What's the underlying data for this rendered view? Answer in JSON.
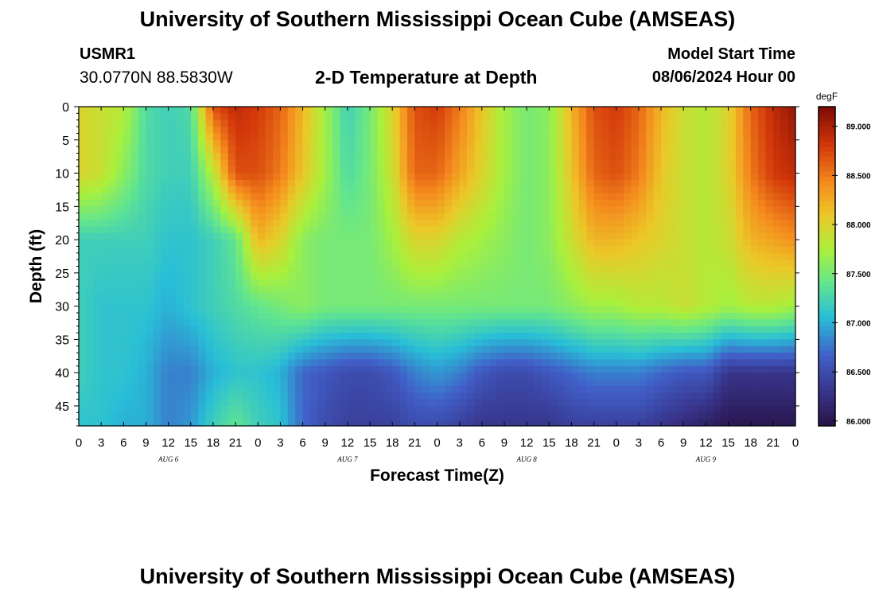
{
  "header": {
    "title": "University of Southern Mississippi Ocean Cube (AMSEAS)",
    "station_id": "USMR1",
    "coordinates": "30.0770N  88.5830W",
    "subtitle": "2-D Temperature at Depth",
    "model_start_label": "Model Start Time",
    "model_start_value": "08/06/2024 Hour 00"
  },
  "footer": {
    "title": "University of Southern Mississippi Ocean Cube (AMSEAS)"
  },
  "chart_data": {
    "type": "heatmap",
    "title": "2-D Temperature at Depth",
    "xlabel": "Forecast Time(Z)",
    "ylabel": "Depth (ft)",
    "x_range_hours": [
      0,
      96
    ],
    "x_tick_step_hours": 3,
    "x_tick_labels": [
      "0",
      "3",
      "6",
      "9",
      "12",
      "15",
      "18",
      "21",
      "0",
      "3",
      "6",
      "9",
      "12",
      "15",
      "18",
      "21",
      "0",
      "3",
      "6",
      "9",
      "12",
      "15",
      "18",
      "21",
      "0",
      "3",
      "6",
      "9",
      "12",
      "15",
      "18",
      "21",
      "0"
    ],
    "date_labels": [
      {
        "text": "AUG 6",
        "hour": 12
      },
      {
        "text": "AUG 7",
        "hour": 36
      },
      {
        "text": "AUG 8",
        "hour": 60
      },
      {
        "text": "AUG 9",
        "hour": 84
      }
    ],
    "y_range_ft": [
      0,
      48
    ],
    "y_ticks": [
      0,
      5,
      10,
      15,
      20,
      25,
      30,
      35,
      40,
      45
    ],
    "colorbar": {
      "unit": "degF",
      "min": 85.95,
      "max": 89.2,
      "tick_values": [
        86.0,
        86.5,
        87.0,
        87.5,
        88.0,
        88.5,
        89.0
      ],
      "tick_labels": [
        "86.000",
        "86.500",
        "87.000",
        "87.500",
        "88.000",
        "88.500",
        "89.000"
      ]
    },
    "grid_hours": [
      0,
      3,
      6,
      9,
      12,
      15,
      18,
      21,
      24,
      27,
      30,
      33,
      36,
      39,
      42,
      45,
      48,
      51,
      54,
      57,
      60,
      63,
      66,
      69,
      72,
      75,
      78,
      81,
      84,
      87,
      90,
      93,
      96
    ],
    "grid_depths_ft": [
      0,
      10,
      20,
      30,
      40,
      48
    ],
    "temperature_degF": [
      [
        88.0,
        87.9,
        87.8,
        87.3,
        87.2,
        87.3,
        88.7,
        88.9,
        88.8,
        88.6,
        88.2,
        87.7,
        87.2,
        87.5,
        88.0,
        88.7,
        88.8,
        88.5,
        88.1,
        87.7,
        87.5,
        87.6,
        88.2,
        88.7,
        88.8,
        88.6,
        88.2,
        87.9,
        87.8,
        88.0,
        88.6,
        88.9,
        89.1
      ],
      [
        88.0,
        87.9,
        87.6,
        87.3,
        87.2,
        87.2,
        87.8,
        88.7,
        88.7,
        88.5,
        88.1,
        87.7,
        87.3,
        87.5,
        87.9,
        88.6,
        88.6,
        88.3,
        88.0,
        87.7,
        87.5,
        87.6,
        88.1,
        88.6,
        88.7,
        88.5,
        88.1,
        87.9,
        87.8,
        88.0,
        88.5,
        88.8,
        88.9
      ],
      [
        87.2,
        87.2,
        87.2,
        87.2,
        87.1,
        87.1,
        87.2,
        87.4,
        88.2,
        88.0,
        87.6,
        87.5,
        87.5,
        87.5,
        87.7,
        88.0,
        88.0,
        87.8,
        87.7,
        87.6,
        87.5,
        87.6,
        87.9,
        88.2,
        88.2,
        88.1,
        88.0,
        87.9,
        87.8,
        87.9,
        88.2,
        88.3,
        88.4
      ],
      [
        87.2,
        87.1,
        87.1,
        87.1,
        87.0,
        87.1,
        87.2,
        87.3,
        87.4,
        87.5,
        87.6,
        87.5,
        87.5,
        87.5,
        87.5,
        87.5,
        87.5,
        87.5,
        87.5,
        87.5,
        87.5,
        87.5,
        87.6,
        87.7,
        87.7,
        87.8,
        87.8,
        87.9,
        87.8,
        87.7,
        87.8,
        87.8,
        87.7
      ],
      [
        87.2,
        87.1,
        87.1,
        87.0,
        86.8,
        86.8,
        87.0,
        87.1,
        87.1,
        87.0,
        86.7,
        86.6,
        86.5,
        86.5,
        86.6,
        86.8,
        86.9,
        86.8,
        86.6,
        86.5,
        86.5,
        86.6,
        86.7,
        86.8,
        86.8,
        86.8,
        86.7,
        86.6,
        86.6,
        86.3,
        86.3,
        86.3,
        86.3
      ],
      [
        87.1,
        87.1,
        87.0,
        87.0,
        86.8,
        86.9,
        87.2,
        87.4,
        87.2,
        87.1,
        86.7,
        86.5,
        86.4,
        86.4,
        86.4,
        86.5,
        86.5,
        86.4,
        86.3,
        86.3,
        86.3,
        86.3,
        86.4,
        86.4,
        86.4,
        86.4,
        86.3,
        86.2,
        86.1,
        86.0,
        86.0,
        86.0,
        86.0
      ]
    ]
  }
}
